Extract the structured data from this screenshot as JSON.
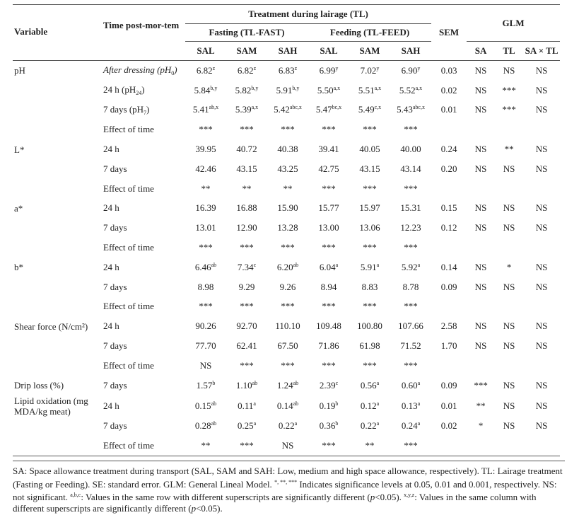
{
  "header": {
    "variable": "Variable",
    "time": "Time post-mor-tem",
    "treatment": "Treatment during lairage (TL)",
    "fasting": "Fasting (TL-FAST)",
    "feeding": "Feeding (TL-FEED)",
    "sem": "SEM",
    "glm": "GLM",
    "sa_cols": [
      "SAL",
      "SAM",
      "SAH",
      "SAL",
      "SAM",
      "SAH"
    ],
    "glm_cols": [
      "SA",
      "TL",
      "SA × TL"
    ]
  },
  "table": {
    "rows": [
      [
        "pH",
        {
          "text": "After dressing (pH",
          "sub": "0",
          "tail": ")",
          "style": "italic"
        },
        {
          "text": "6.82",
          "sup": "z"
        },
        {
          "text": "6.82",
          "sup": "z"
        },
        {
          "text": "6.83",
          "sup": "z"
        },
        {
          "text": "6.99",
          "sup": "y"
        },
        {
          "text": "7.02",
          "sup": "y"
        },
        {
          "text": "6.90",
          "sup": "y"
        },
        "0.03",
        "NS",
        "NS",
        "NS"
      ],
      [
        null,
        {
          "text": "24 h (pH",
          "sub": "24",
          "tail": ")"
        },
        {
          "text": "5.84",
          "sup": "b,y"
        },
        {
          "text": "5.82",
          "sup": "b,y"
        },
        {
          "text": "5.91",
          "sup": "b,y"
        },
        {
          "text": "5.50",
          "sup": "a,x"
        },
        {
          "text": "5.51",
          "sup": "a,x"
        },
        {
          "text": "5.52",
          "sup": "a,x"
        },
        "0.02",
        "NS",
        "***",
        "NS"
      ],
      [
        null,
        {
          "text": "7 days (pH",
          "sub": "7",
          "tail": ")"
        },
        {
          "text": "5.41",
          "sup": "ab,x"
        },
        {
          "text": "5.39",
          "sup": "a,x"
        },
        {
          "text": "5.42",
          "sup": "abc,x"
        },
        {
          "text": "5.47",
          "sup": "bc,x"
        },
        {
          "text": "5.49",
          "sup": "c,x"
        },
        {
          "text": "5.43",
          "sup": "abc,x"
        },
        "0.01",
        "NS",
        "***",
        "NS"
      ],
      [
        null,
        "Effect of time",
        "***",
        "***",
        "***",
        "***",
        "***",
        "***",
        null,
        null,
        null,
        null
      ],
      [
        "L*",
        "24 h",
        "39.95",
        "40.72",
        "40.38",
        "39.41",
        "40.05",
        "40.00",
        "0.24",
        "NS",
        "**",
        "NS"
      ],
      [
        null,
        "7 days",
        "42.46",
        "43.15",
        "43.25",
        "42.75",
        "43.15",
        "43.14",
        "0.20",
        "NS",
        "NS",
        "NS"
      ],
      [
        null,
        "Effect of time",
        "**",
        "**",
        "**",
        "***",
        "***",
        "***",
        null,
        null,
        null,
        null
      ],
      [
        "a*",
        "24 h",
        "16.39",
        "16.88",
        "15.90",
        "15.77",
        "15.97",
        "15.31",
        "0.15",
        "NS",
        "NS",
        "NS"
      ],
      [
        null,
        "7 days",
        "13.01",
        "12.90",
        "13.28",
        "13.00",
        "13.06",
        "12.23",
        "0.12",
        "NS",
        "NS",
        "NS"
      ],
      [
        null,
        "Effect of time",
        "***",
        "***",
        "***",
        "***",
        "***",
        "***",
        null,
        null,
        null,
        null
      ],
      [
        "b*",
        "24 h",
        {
          "text": "6.46",
          "sup": "ab"
        },
        {
          "text": "7.34",
          "sup": "c"
        },
        {
          "text": "6.20",
          "sup": "ab"
        },
        {
          "text": "6.04",
          "sup": "a"
        },
        {
          "text": "5.91",
          "sup": "a"
        },
        {
          "text": "5.92",
          "sup": "a"
        },
        "0.14",
        "NS",
        "*",
        "NS"
      ],
      [
        null,
        "7 days",
        "8.98",
        "9.29",
        "9.26",
        "8.94",
        "8.83",
        "8.78",
        "0.09",
        "NS",
        "NS",
        "NS"
      ],
      [
        null,
        "Effect of time",
        "***",
        "***",
        "***",
        "***",
        "***",
        "***",
        null,
        null,
        null,
        null
      ],
      [
        "Shear force (N/cm²)",
        "24 h",
        "90.26",
        "92.70",
        "110.10",
        "109.48",
        "100.80",
        "107.66",
        "2.58",
        "NS",
        "NS",
        "NS"
      ],
      [
        null,
        "7 days",
        "77.70",
        "62.41",
        "67.50",
        "71.86",
        "61.98",
        "71.52",
        "1.70",
        "NS",
        "NS",
        "NS"
      ],
      [
        null,
        "Effect of time",
        "NS",
        "***",
        "***",
        "***",
        "***",
        "***",
        null,
        null,
        null,
        null
      ],
      [
        "Drip loss (%)",
        "7 days",
        {
          "text": "1.57",
          "sup": "b"
        },
        {
          "text": "1.10",
          "sup": "ab"
        },
        {
          "text": "1.24",
          "sup": "ab"
        },
        {
          "text": "2.39",
          "sup": "c"
        },
        {
          "text": "0.56",
          "sup": "a"
        },
        {
          "text": "0.60",
          "sup": "a"
        },
        "0.09",
        "***",
        "NS",
        "NS"
      ],
      [
        "Lipid oxidation (mg MDA/kg meat)",
        "24 h",
        {
          "text": "0.15",
          "sup": "ab"
        },
        {
          "text": "0.11",
          "sup": "a"
        },
        {
          "text": "0.14",
          "sup": "ab"
        },
        {
          "text": "0.19",
          "sup": "b"
        },
        {
          "text": "0.12",
          "sup": "a"
        },
        {
          "text": "0.13",
          "sup": "a"
        },
        "0.01",
        "**",
        "NS",
        "NS"
      ],
      [
        null,
        "7 days",
        {
          "text": "0.28",
          "sup": "ab"
        },
        {
          "text": "0.25",
          "sup": "a"
        },
        {
          "text": "0.22",
          "sup": "a"
        },
        {
          "text": "0.36",
          "sup": "b"
        },
        {
          "text": "0.22",
          "sup": "a"
        },
        {
          "text": "0.24",
          "sup": "a"
        },
        "0.02",
        "*",
        "NS",
        "NS"
      ],
      [
        null,
        "Effect of time",
        "**",
        "***",
        "NS",
        "***",
        "**",
        "***",
        null,
        null,
        null,
        null
      ]
    ]
  },
  "footnote": [
    {
      "text": "SA: Space allowance treatment during transport (SAL, SAM and SAH: Low, medium and high space allowance, respectively). TL: Lairage treatment (Fasting or Feeding). SE: standard error. GLM: General Lineal Model. "
    },
    {
      "text": "*, **, ***",
      "style": "sup"
    },
    {
      "text": " Indicates significance levels at 0.05, 0.01 and 0.001, respectively. NS: not significant. "
    },
    {
      "text": "a,b,c",
      "style": "sup"
    },
    {
      "text": ": Values in the same row with different superscripts are significantly different ("
    },
    {
      "text": "p",
      "style": "italic"
    },
    {
      "text": "<0.05). "
    },
    {
      "text": "x,y,z",
      "style": "sup"
    },
    {
      "text": ": Values in the same column with different superscripts are significantly different ("
    },
    {
      "text": "p",
      "style": "italic"
    },
    {
      "text": "<0.05)."
    }
  ]
}
